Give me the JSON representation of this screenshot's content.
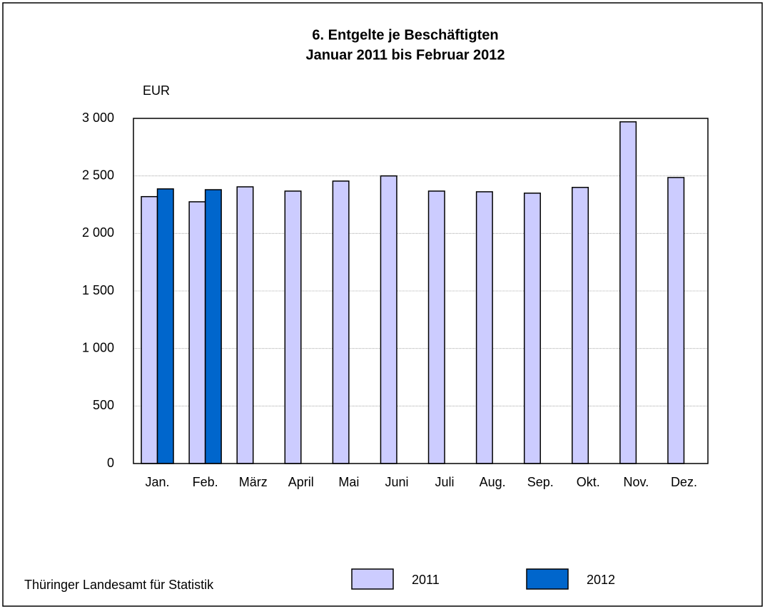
{
  "chart_data": {
    "type": "bar",
    "title": [
      "6. Entgelte je Beschäftigten",
      "Januar 2011 bis Februar 2012"
    ],
    "y_label": "EUR",
    "source": "Thüringer Landesamt für Statistik",
    "categories": [
      "Jan.",
      "Feb.",
      "März",
      "April",
      "Mai",
      "Juni",
      "Juli",
      "Aug.",
      "Sep.",
      "Okt.",
      "Nov.",
      "Dez."
    ],
    "series": [
      {
        "name": "2011",
        "color": "#ccccff",
        "values": [
          2320,
          2275,
          2405,
          2368,
          2455,
          2500,
          2368,
          2362,
          2350,
          2400,
          2970,
          2486
        ]
      },
      {
        "name": "2012",
        "color": "#0066cc",
        "values": [
          2387,
          2380,
          null,
          null,
          null,
          null,
          null,
          null,
          null,
          null,
          null,
          null
        ]
      }
    ],
    "ylim": [
      0,
      3000
    ],
    "yticks": [
      0,
      500,
      {
        "value": 1000,
        "label": "1 000"
      },
      {
        "value": 1500,
        "label": "1 500"
      },
      {
        "value": 2000,
        "label": "2 000"
      },
      {
        "value": 2500,
        "label": "2 500"
      },
      {
        "value": 3000,
        "label": "3 000"
      }
    ],
    "grid": true
  }
}
